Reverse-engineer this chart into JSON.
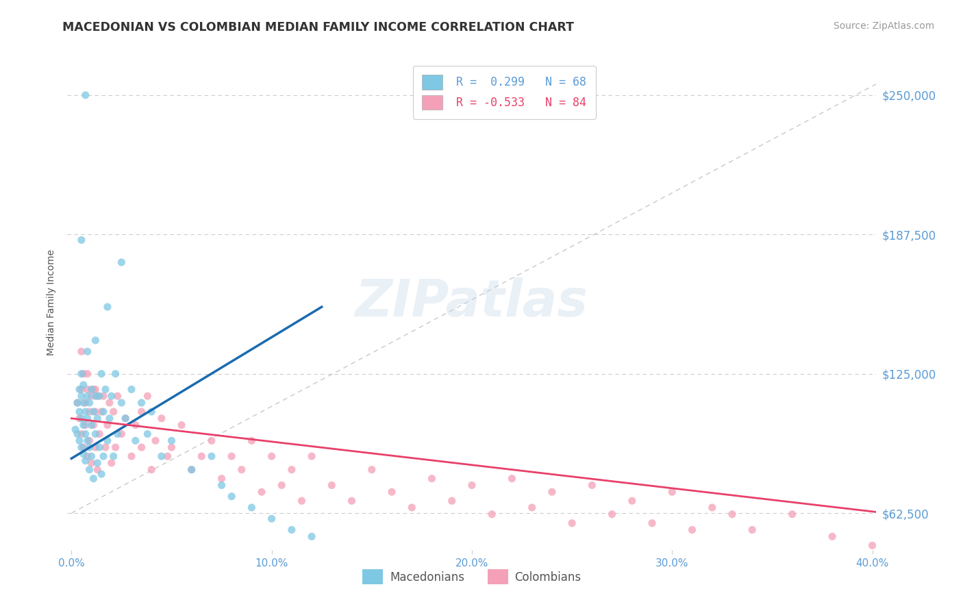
{
  "title": "MACEDONIAN VS COLOMBIAN MEDIAN FAMILY INCOME CORRELATION CHART",
  "source": "Source: ZipAtlas.com",
  "ylabel": "Median Family Income",
  "xlim_min": -0.002,
  "xlim_max": 0.402,
  "ylim_min": 46000,
  "ylim_max": 268000,
  "yticks": [
    62500,
    125000,
    187500,
    250000
  ],
  "ytick_labels": [
    "$62,500",
    "$125,000",
    "$187,500",
    "$250,000"
  ],
  "xticks": [
    0.0,
    0.1,
    0.2,
    0.3,
    0.4
  ],
  "xtick_labels": [
    "0.0%",
    "10.0%",
    "20.0%",
    "30.0%",
    "40.0%"
  ],
  "macedonian_color": "#7EC8E3",
  "colombian_color": "#F4A0B8",
  "macedonian_R": 0.299,
  "macedonian_N": 68,
  "colombian_R": -0.533,
  "colombian_N": 84,
  "blue_line_color": "#1A6BAF",
  "pink_line_color": "#E8406A",
  "ref_line_color": "#BBBBBB",
  "axis_color": "#5B9BD5",
  "title_color": "#333333",
  "grid_color": "#CCCCCC",
  "macedonian_x": [
    0.002,
    0.003,
    0.003,
    0.004,
    0.004,
    0.004,
    0.005,
    0.005,
    0.005,
    0.005,
    0.006,
    0.006,
    0.006,
    0.006,
    0.007,
    0.007,
    0.007,
    0.008,
    0.008,
    0.008,
    0.009,
    0.009,
    0.009,
    0.01,
    0.01,
    0.01,
    0.011,
    0.011,
    0.012,
    0.012,
    0.013,
    0.013,
    0.014,
    0.014,
    0.015,
    0.015,
    0.016,
    0.016,
    0.017,
    0.018,
    0.019,
    0.02,
    0.021,
    0.022,
    0.023,
    0.025,
    0.027,
    0.03,
    0.032,
    0.035,
    0.038,
    0.04,
    0.045,
    0.05,
    0.06,
    0.07,
    0.075,
    0.08,
    0.09,
    0.1,
    0.11,
    0.12,
    0.025,
    0.018,
    0.007,
    0.005,
    0.012,
    0.008
  ],
  "macedonian_y": [
    100000,
    112000,
    98000,
    108000,
    118000,
    95000,
    105000,
    115000,
    92000,
    125000,
    102000,
    112000,
    89000,
    120000,
    98000,
    108000,
    86000,
    115000,
    95000,
    105000,
    92000,
    112000,
    82000,
    102000,
    118000,
    88000,
    108000,
    78000,
    98000,
    115000,
    85000,
    105000,
    92000,
    115000,
    80000,
    125000,
    88000,
    108000,
    118000,
    95000,
    105000,
    115000,
    88000,
    125000,
    98000,
    112000,
    105000,
    118000,
    95000,
    112000,
    98000,
    108000,
    88000,
    95000,
    82000,
    88000,
    75000,
    70000,
    65000,
    60000,
    55000,
    52000,
    175000,
    155000,
    250000,
    185000,
    140000,
    135000
  ],
  "colombian_x": [
    0.003,
    0.004,
    0.005,
    0.005,
    0.006,
    0.006,
    0.007,
    0.007,
    0.008,
    0.008,
    0.009,
    0.009,
    0.01,
    0.01,
    0.011,
    0.011,
    0.012,
    0.012,
    0.013,
    0.013,
    0.014,
    0.015,
    0.016,
    0.017,
    0.018,
    0.019,
    0.02,
    0.021,
    0.022,
    0.023,
    0.025,
    0.027,
    0.03,
    0.032,
    0.035,
    0.038,
    0.04,
    0.042,
    0.045,
    0.048,
    0.05,
    0.055,
    0.06,
    0.065,
    0.07,
    0.075,
    0.08,
    0.085,
    0.09,
    0.095,
    0.1,
    0.105,
    0.11,
    0.115,
    0.12,
    0.13,
    0.14,
    0.15,
    0.16,
    0.17,
    0.18,
    0.19,
    0.2,
    0.21,
    0.22,
    0.23,
    0.24,
    0.25,
    0.26,
    0.27,
    0.28,
    0.29,
    0.3,
    0.31,
    0.32,
    0.33,
    0.34,
    0.36,
    0.38,
    0.4,
    0.005,
    0.008,
    0.012,
    0.035
  ],
  "colombian_y": [
    112000,
    105000,
    118000,
    98000,
    125000,
    92000,
    112000,
    102000,
    118000,
    88000,
    108000,
    95000,
    115000,
    85000,
    102000,
    118000,
    92000,
    108000,
    82000,
    115000,
    98000,
    108000,
    115000,
    92000,
    102000,
    112000,
    85000,
    108000,
    92000,
    115000,
    98000,
    105000,
    88000,
    102000,
    92000,
    115000,
    82000,
    95000,
    105000,
    88000,
    92000,
    102000,
    82000,
    88000,
    95000,
    78000,
    88000,
    82000,
    95000,
    72000,
    88000,
    75000,
    82000,
    68000,
    88000,
    75000,
    68000,
    82000,
    72000,
    65000,
    78000,
    68000,
    75000,
    62000,
    78000,
    65000,
    72000,
    58000,
    75000,
    62000,
    68000,
    58000,
    72000,
    55000,
    65000,
    62000,
    55000,
    62000,
    52000,
    48000,
    135000,
    125000,
    118000,
    108000
  ],
  "blue_trend_x": [
    0.0,
    0.125
  ],
  "blue_trend_y": [
    87000,
    155000
  ],
  "pink_trend_x": [
    0.0,
    0.402
  ],
  "pink_trend_y": [
    105000,
    63000
  ]
}
